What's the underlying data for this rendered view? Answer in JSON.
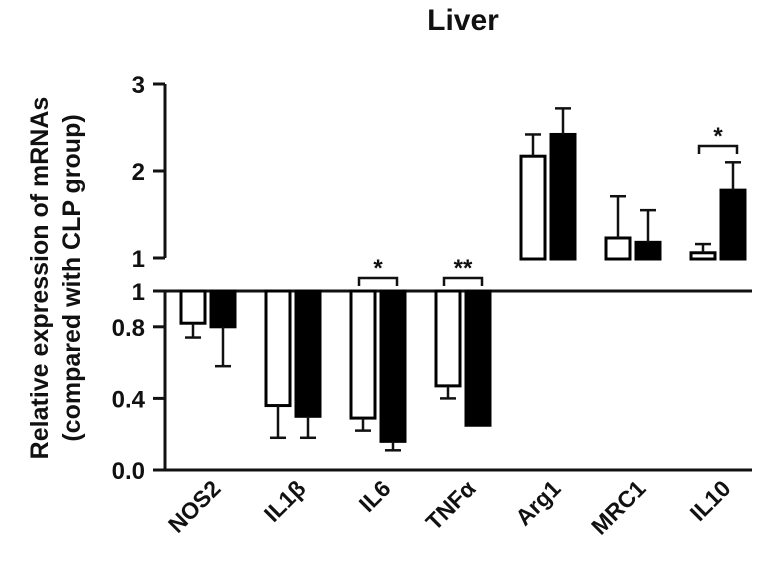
{
  "chart_data": {
    "type": "bar",
    "title": "Liver",
    "ylabel_lines": [
      "Relative expression of mRNAs",
      "(compared with CLP group)"
    ],
    "categories": [
      "NOS2",
      "IL1β",
      "IL6",
      "TNFα",
      "Arg1",
      "MRC1",
      "IL10"
    ],
    "upper_axis": {
      "ylim": [
        1,
        3
      ],
      "ticks": [
        "1",
        "2",
        "3"
      ]
    },
    "lower_axis": {
      "ylim": [
        0,
        1
      ],
      "ticks": [
        "0.0",
        "0.4",
        "0.8",
        "1"
      ]
    },
    "baseline": 1,
    "series": [
      {
        "fill": "#ffffff",
        "values": [
          0.82,
          0.36,
          0.29,
          0.47,
          2.17,
          1.23,
          1.06
        ],
        "error": [
          0.08,
          0.18,
          0.07,
          0.07,
          0.25,
          0.48,
          0.1
        ]
      },
      {
        "fill": "#000000",
        "values": [
          0.8,
          0.3,
          0.16,
          0.25,
          2.42,
          1.18,
          1.78
        ],
        "error": [
          0.22,
          0.12,
          0.05,
          0.0,
          0.3,
          0.37,
          0.32
        ]
      }
    ],
    "significance": [
      {
        "category": "IL6",
        "label": "*"
      },
      {
        "category": "TNFα",
        "label": "**"
      },
      {
        "category": "IL10",
        "label": "*"
      }
    ]
  }
}
